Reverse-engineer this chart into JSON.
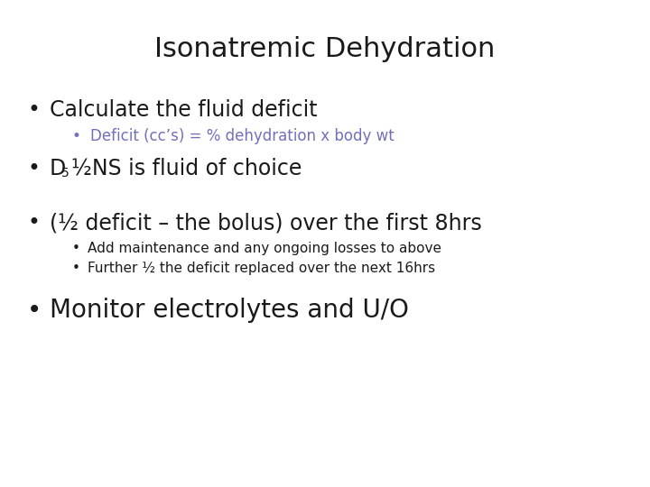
{
  "title": "Isonatremic Dehydration",
  "title_fontsize": 22,
  "title_color": "#1a1a1a",
  "background_color": "#ffffff",
  "bullet1": "Calculate the fluid deficit",
  "bullet1_fontsize": 17,
  "bullet1_color": "#1a1a1a",
  "sub_bullet1": "Deficit (cc’s) = % dehydration x body wt",
  "sub_bullet1_fontsize": 12,
  "sub_bullet1_color": "#7070bb",
  "bullet2_d": "D",
  "bullet2_sub": "5",
  "bullet2_rest": "½NS is fluid of choice",
  "bullet2_fontsize": 17,
  "bullet2_color": "#1a1a1a",
  "bullet3": "(½ deficit – the bolus) over the first 8hrs",
  "bullet3_fontsize": 17,
  "bullet3_color": "#1a1a1a",
  "sub_bullet3a": "Add maintenance and any ongoing losses to above",
  "sub_bullet3a_fontsize": 11,
  "sub_bullet3a_color": "#1a1a1a",
  "sub_bullet3b": "Further ½ the deficit replaced over the next 16hrs",
  "sub_bullet3b_fontsize": 11,
  "sub_bullet3b_color": "#1a1a1a",
  "bullet4": "Monitor electrolytes and U/O",
  "bullet4_fontsize": 20,
  "bullet4_color": "#1a1a1a",
  "bullet_char": "•"
}
